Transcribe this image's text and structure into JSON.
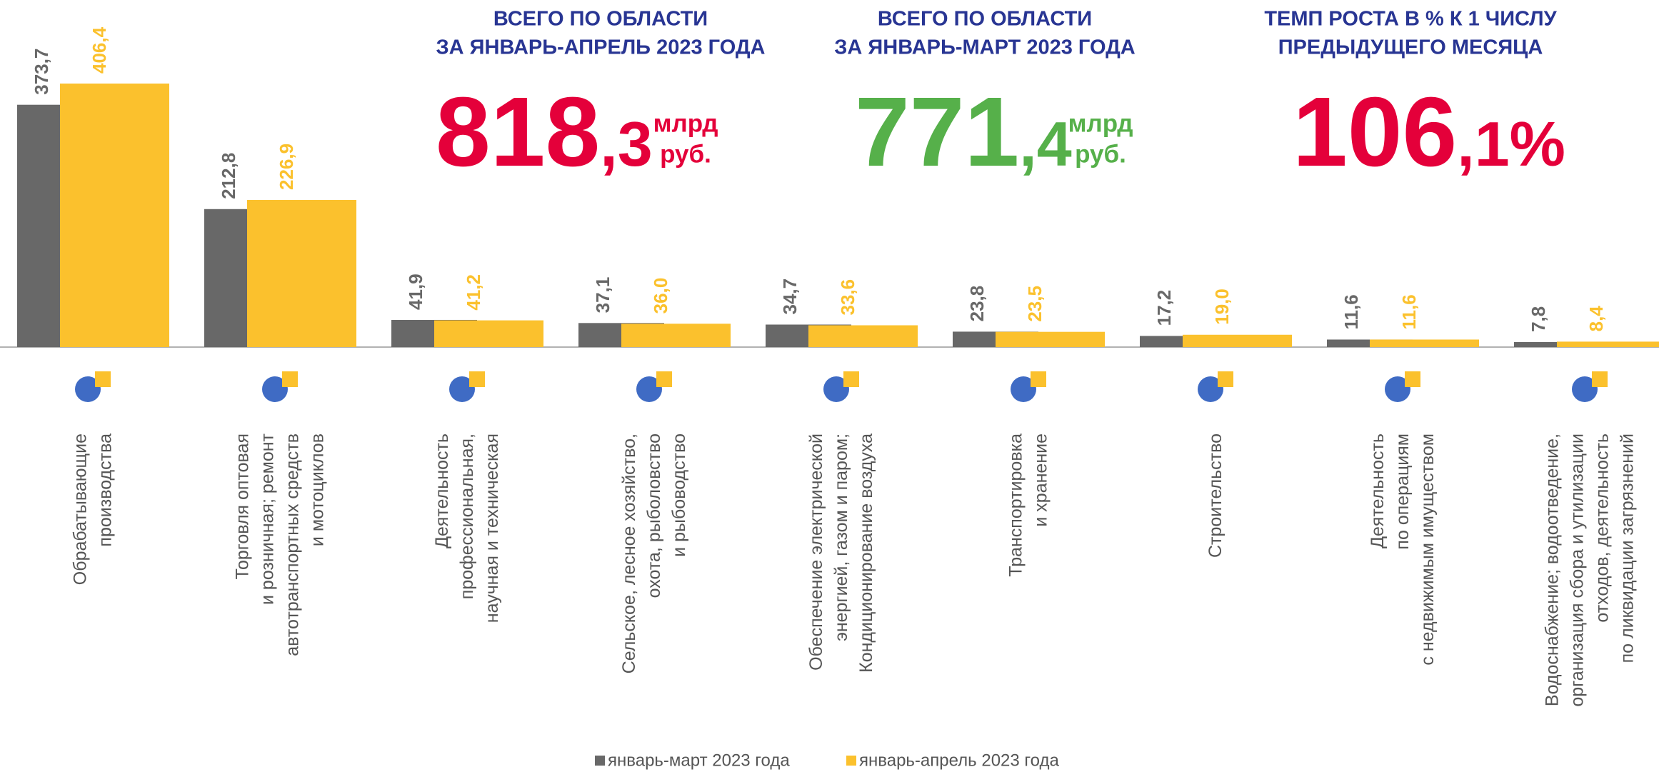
{
  "chart_data": {
    "type": "bar",
    "categories": [
      "Обрабатывающие\nпроизводства",
      "Торговля оптовая\nи розничная; ремонт\nавтотранспортных средств\nи мотоциклов",
      "Деятельность\nпрофессиональная,\nнаучная и техническая",
      "Сельское, лесное хозяйство,\nохота, рыболовство\nи  рыбоводство",
      "Обеспечение электрической\nэнергией, газом и паром;\nКондиционирование воздуха",
      "Транспортировка\nи хранение",
      "Строительство",
      "Деятельность\nпо операциям\nс недвижимым имуществом",
      "Водоснабжение; водоотведение,\nорганизация сбора и утилизации\nотходов, деятельность\nпо ликвидации загрязнений"
    ],
    "series": [
      {
        "name": "январь-март 2023 года",
        "color": "#686868",
        "values": [
          373.7,
          212.8,
          41.9,
          37.1,
          34.7,
          23.8,
          17.2,
          11.6,
          7.8
        ],
        "value_labels": [
          "373,7",
          "212,8",
          "41,9",
          "37,1",
          "34,7",
          "23,8",
          "17,2",
          "11,6",
          "7,8"
        ]
      },
      {
        "name": "январь-апрель 2023 года",
        "color": "#fbc12d",
        "values": [
          406.4,
          226.9,
          41.2,
          36.0,
          33.6,
          23.5,
          19.0,
          11.6,
          8.4
        ],
        "value_labels": [
          "406,4",
          "226,9",
          "41,2",
          "36,0",
          "33,6",
          "23,5",
          "19,0",
          "11,6",
          "8,4"
        ]
      }
    ],
    "legend": "bottom"
  },
  "kpis": [
    {
      "title": [
        "ВСЕГО ПО ОБЛАСТИ",
        "ЗА ЯНВАРЬ-АПРЕЛЬ 2023 ГОДА"
      ],
      "integer": "818",
      "decimal": ",3",
      "unit": [
        "млрд",
        "руб."
      ],
      "color": "#e4003a"
    },
    {
      "title": [
        "ВСЕГО ПО ОБЛАСТИ",
        "ЗА ЯНВАРЬ-МАРТ 2023 ГОДА"
      ],
      "integer": "771",
      "decimal": ",4",
      "unit": [
        "млрд",
        "руб."
      ],
      "color": "#56b04a"
    },
    {
      "title": [
        "ТЕМП РОСТА В % К 1 ЧИСЛУ",
        "ПРЕДЫДУЩЕГО МЕСЯЦА"
      ],
      "integer": "106",
      "decimal": ",1%",
      "unit": [],
      "color": "#e4003a"
    }
  ]
}
